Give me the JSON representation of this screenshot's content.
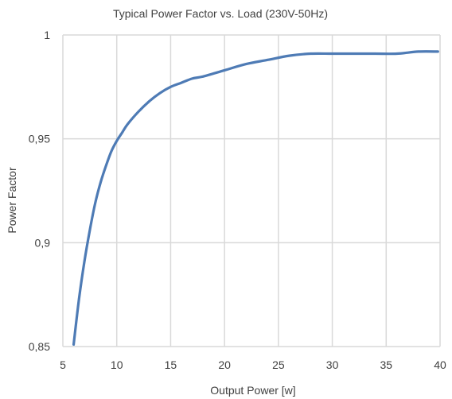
{
  "chart_data": {
    "type": "line",
    "title": "Typical Power Factor vs. Load (230V-50Hz)",
    "xlabel": "Output Power [w]",
    "ylabel": "Power Factor",
    "xlim": [
      5,
      40
    ],
    "ylim": [
      0.85,
      1
    ],
    "x_ticks": [
      5,
      10,
      15,
      20,
      25,
      30,
      35,
      40
    ],
    "x_tick_labels": [
      "5",
      "10",
      "15",
      "20",
      "25",
      "30",
      "35",
      "40"
    ],
    "y_ticks": [
      0.85,
      0.9,
      0.95,
      1
    ],
    "y_tick_labels": [
      "0,85",
      "0,9",
      "0,95",
      "1"
    ],
    "grid": true,
    "legend": "none",
    "series": [
      {
        "color": "#4e7bb5",
        "x": [
          6,
          6.5,
          7,
          7.5,
          8,
          8.5,
          9,
          9.5,
          10,
          10.5,
          11,
          12,
          13,
          14,
          15,
          16,
          17,
          18,
          20,
          22,
          24,
          26,
          28,
          30,
          32,
          34,
          36,
          38,
          39.8
        ],
        "y": [
          0.851,
          0.873,
          0.891,
          0.906,
          0.919,
          0.929,
          0.937,
          0.944,
          0.949,
          0.953,
          0.957,
          0.963,
          0.968,
          0.972,
          0.975,
          0.977,
          0.979,
          0.98,
          0.983,
          0.986,
          0.988,
          0.99,
          0.991,
          0.991,
          0.991,
          0.991,
          0.991,
          0.992,
          0.992
        ]
      }
    ]
  }
}
